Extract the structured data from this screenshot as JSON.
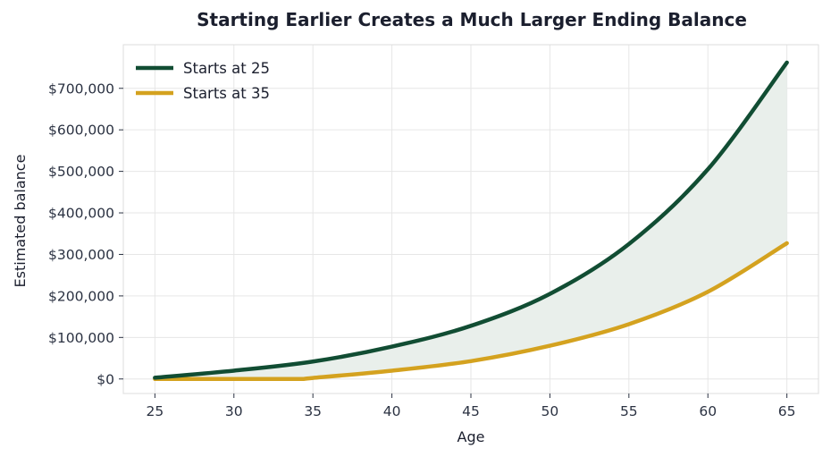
{
  "chart_data": {
    "type": "line",
    "title": "Starting Earlier Creates a Much Larger Ending Balance",
    "xlabel": "Age",
    "ylabel": "Estimated balance",
    "xlim": [
      23,
      67
    ],
    "ylim": [
      -35000,
      805000
    ],
    "x_ticks": [
      25,
      30,
      35,
      40,
      45,
      50,
      55,
      60,
      65
    ],
    "y_ticks": [
      0,
      100000,
      200000,
      300000,
      400000,
      500000,
      600000,
      700000
    ],
    "y_tick_labels": [
      "$0",
      "$100,000",
      "$200,000",
      "$300,000",
      "$400,000",
      "$500,000",
      "$600,000",
      "$700,000"
    ],
    "grid": true,
    "legend_position": "top-left",
    "fill_between": {
      "series": [
        "Starts at 25",
        "Starts at 35"
      ],
      "color": "#e9efeb"
    },
    "series": [
      {
        "name": "Starts at 25",
        "color": "#114d33",
        "x": [
          25,
          30,
          35,
          40,
          45,
          50,
          55,
          60,
          65
        ],
        "values": [
          3000,
          20000,
          42000,
          78000,
          128000,
          205000,
          325000,
          505000,
          762000
        ]
      },
      {
        "name": "Starts at 35",
        "color": "#d4a21f",
        "x": [
          25,
          30,
          34,
          35,
          40,
          45,
          50,
          55,
          60,
          65
        ],
        "values": [
          0,
          0,
          0,
          2500,
          20000,
          43000,
          80000,
          132000,
          210000,
          327000
        ]
      }
    ]
  }
}
